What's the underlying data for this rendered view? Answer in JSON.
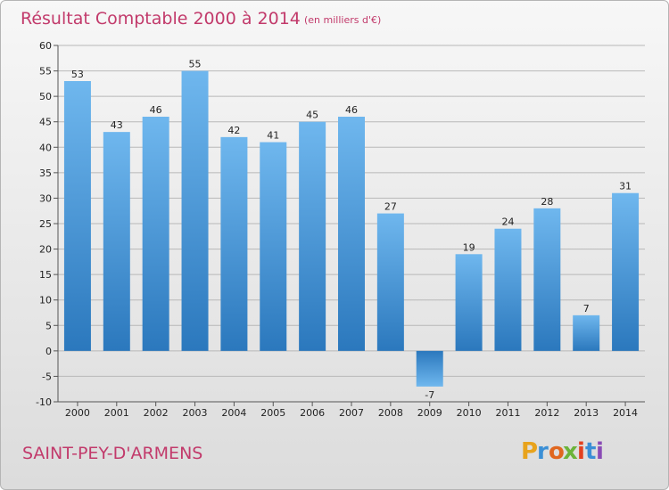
{
  "title": "Résultat Comptable 2000 à 2014",
  "subtitle": "(en milliers d'€)",
  "commune": "SAINT-PEY-D'ARMENS",
  "brand": "Proxiti",
  "colors": {
    "title": "#c23a6b",
    "bar_top": "#6fb7ee",
    "bar_bottom": "#2b78bd",
    "grid": "#b8b8b8"
  },
  "chart_data": {
    "type": "bar",
    "categories": [
      "2000",
      "2001",
      "2002",
      "2003",
      "2004",
      "2005",
      "2006",
      "2007",
      "2008",
      "2009",
      "2010",
      "2011",
      "2012",
      "2013",
      "2014"
    ],
    "values": [
      53,
      43,
      46,
      55,
      42,
      41,
      45,
      46,
      27,
      -7,
      19,
      24,
      28,
      7,
      31
    ],
    "ylim": [
      -10,
      60
    ],
    "yticks": [
      -10,
      -5,
      0,
      5,
      10,
      15,
      20,
      25,
      30,
      35,
      40,
      45,
      50,
      55,
      60
    ],
    "grid": true
  }
}
